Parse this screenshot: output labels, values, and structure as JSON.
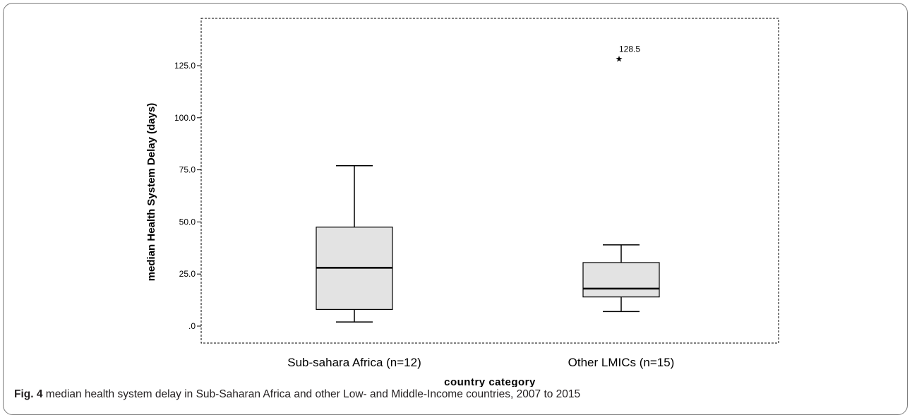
{
  "caption": {
    "label": "Fig. 4",
    "text": " median health system delay in Sub-Saharan Africa and other Low- and Middle-Income countries, 2007 to 2015"
  },
  "chart_data": {
    "type": "boxplot",
    "title": "",
    "xlabel": "country category",
    "ylabel": "median Health System Delay (days)",
    "ylim": [
      -8,
      148
    ],
    "yticks": [
      0,
      25,
      50,
      75,
      100,
      125
    ],
    "ytick_labels": [
      ".0",
      "25.0",
      "50.0",
      "75.0",
      "100.0",
      "125.0"
    ],
    "categories": [
      "Sub-sahara Africa (n=12)",
      "Other LMICs (n=15)"
    ],
    "boxes": [
      {
        "category": "Sub-sahara Africa (n=12)",
        "min": 2,
        "q1": 8,
        "median": 28,
        "q3": 47.5,
        "max": 77,
        "outliers": []
      },
      {
        "category": "Other LMICs (n=15)",
        "min": 7,
        "q1": 14,
        "median": 18,
        "q3": 30.5,
        "max": 39,
        "outliers": [
          {
            "value": 128.5,
            "label": "128.5",
            "marker": "star"
          }
        ]
      }
    ],
    "colors": {
      "box_fill": "#e3e3e3",
      "stroke": "#000000"
    },
    "grid": false,
    "legend": "none"
  }
}
